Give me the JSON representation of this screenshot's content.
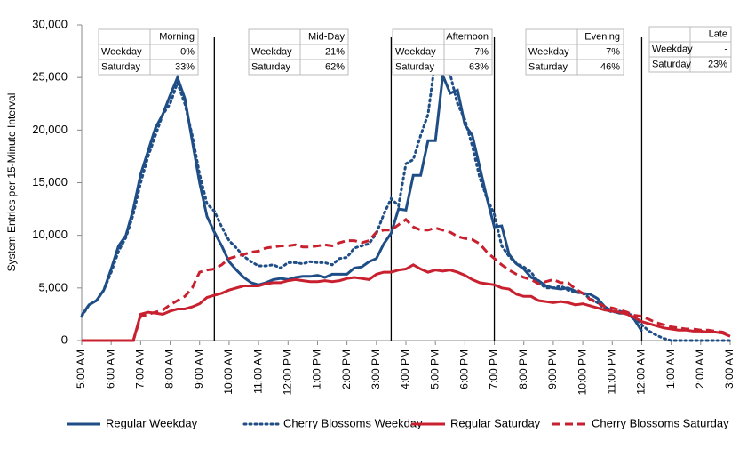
{
  "chart_data": {
    "type": "line",
    "ylabel": "System Entries per 15-Minute Interval",
    "categories": [
      "5:00 AM",
      null,
      null,
      null,
      "6:00 AM",
      null,
      null,
      null,
      "7:00 AM",
      null,
      null,
      null,
      "8:00 AM",
      null,
      null,
      null,
      "9:00 AM",
      null,
      null,
      null,
      "10:00 AM",
      null,
      null,
      null,
      "11:00 AM",
      null,
      null,
      null,
      "12:00 PM",
      null,
      null,
      null,
      "1:00 PM",
      null,
      null,
      null,
      "2:00 PM",
      null,
      null,
      null,
      "3:00 PM",
      null,
      null,
      null,
      "4:00 PM",
      null,
      null,
      null,
      "5:00 PM",
      null,
      null,
      null,
      "6:00 PM",
      null,
      null,
      null,
      "7:00 PM",
      null,
      null,
      null,
      "8:00 PM",
      null,
      null,
      null,
      "9:00 PM",
      null,
      null,
      null,
      "10:00 PM",
      null,
      null,
      null,
      "11:00 PM",
      null,
      null,
      null,
      "12:00 AM",
      null,
      null,
      null,
      "1:00 AM",
      null,
      null,
      null,
      "2:00 AM",
      null,
      null,
      null,
      "3:00 AM"
    ],
    "ylim": [
      0,
      30000
    ],
    "yticks": [
      0,
      {
        "value": 5000,
        "label": "5,000"
      },
      {
        "value": 10000,
        "label": "10,000"
      },
      {
        "value": 15000,
        "label": "15,000"
      },
      {
        "value": 20000,
        "label": "20,000"
      },
      {
        "value": 25000,
        "label": "25,000"
      },
      {
        "value": 30000,
        "label": "30,000"
      }
    ],
    "grid": false,
    "legend": "bottom",
    "series": [
      {
        "name": "Regular Weekday",
        "color": "#1f4e87",
        "dash": "solid",
        "values": [
          2400,
          3400,
          3800,
          4800,
          6800,
          9000,
          10000,
          12500,
          15800,
          18000,
          20200,
          21500,
          23300,
          25000,
          23000,
          19000,
          15000,
          11800,
          10300,
          9000,
          7500,
          6700,
          6000,
          5500,
          5300,
          5500,
          5800,
          5900,
          5800,
          6000,
          6100,
          6100,
          6200,
          6000,
          6300,
          6300,
          6300,
          6900,
          7000,
          7500,
          7800,
          9200,
          10200,
          12500,
          12400,
          15700,
          15700,
          19000,
          19000,
          25200,
          23500,
          23800,
          20500,
          19500,
          16500,
          13500,
          10800,
          10900,
          8200,
          7300,
          6800,
          6000,
          5700,
          5200,
          5000,
          4900,
          5000,
          4700,
          4500,
          4400,
          4000,
          3200,
          2800,
          2600,
          2600,
          2000,
          900,
          null,
          null,
          null,
          null,
          null,
          null,
          null,
          null,
          null,
          null,
          null,
          null
        ]
      },
      {
        "name": "Cherry Blossoms Weekday",
        "color": "#1f4e87",
        "dash": "dot",
        "values": [
          2300,
          3400,
          3800,
          4800,
          6500,
          8500,
          9800,
          12000,
          15000,
          17500,
          19500,
          21500,
          22500,
          24500,
          22500,
          19500,
          15800,
          13000,
          12300,
          10800,
          9500,
          8800,
          8000,
          7500,
          7100,
          7100,
          7200,
          6900,
          7400,
          7400,
          7300,
          7500,
          7400,
          7400,
          7200,
          7800,
          7900,
          8800,
          9000,
          9200,
          10200,
          12000,
          13500,
          12800,
          16800,
          17200,
          19500,
          21500,
          26800,
          25500,
          25300,
          22500,
          21000,
          18500,
          15500,
          13500,
          12000,
          9000,
          8000,
          7300,
          7000,
          6500,
          5500,
          5000,
          5000,
          5200,
          4800,
          4600,
          4500,
          4000,
          3600,
          3000,
          2700,
          2800,
          2600,
          2300,
          1500,
          900,
          500,
          200,
          0,
          0,
          0,
          0,
          0,
          0,
          0,
          0,
          0
        ]
      },
      {
        "name": "Regular Saturday",
        "color": "#c8202f",
        "dash": "solid",
        "values": [
          0,
          0,
          0,
          0,
          0,
          0,
          0,
          0,
          2500,
          2700,
          2600,
          2500,
          2800,
          3000,
          3000,
          3200,
          3500,
          4100,
          4300,
          4500,
          4800,
          5000,
          5200,
          5200,
          5200,
          5400,
          5500,
          5500,
          5700,
          5800,
          5700,
          5600,
          5600,
          5700,
          5600,
          5700,
          5900,
          6000,
          5900,
          5800,
          6300,
          6500,
          6500,
          6700,
          6800,
          7200,
          6800,
          6500,
          6700,
          6600,
          6700,
          6500,
          6200,
          5800,
          5500,
          5400,
          5300,
          5000,
          4900,
          4400,
          4200,
          4200,
          3800,
          3700,
          3600,
          3700,
          3600,
          3400,
          3500,
          3300,
          3100,
          2900,
          2800,
          2700,
          2500,
          2200,
          1800,
          1600,
          1400,
          1200,
          1100,
          1000,
          1000,
          900,
          900,
          800,
          800,
          700,
          400
        ]
      },
      {
        "name": "Cherry Blossoms Saturday",
        "color": "#c8202f",
        "dash": "dash",
        "values": [
          0,
          0,
          0,
          0,
          0,
          0,
          0,
          0,
          2300,
          2500,
          2700,
          2900,
          3400,
          3800,
          4200,
          5000,
          6500,
          6700,
          6800,
          7200,
          7800,
          8000,
          8200,
          8400,
          8500,
          8800,
          8900,
          9000,
          9000,
          9100,
          8900,
          8900,
          9000,
          9100,
          9000,
          9300,
          9500,
          9500,
          9300,
          9500,
          10300,
          10500,
          10500,
          11000,
          11500,
          10800,
          10500,
          10500,
          10700,
          10500,
          10300,
          9900,
          9700,
          9600,
          9200,
          8400,
          7800,
          7200,
          6700,
          6300,
          6000,
          5800,
          5400,
          5600,
          5800,
          5500,
          5500,
          4900,
          4500,
          3900,
          3600,
          3200,
          3100,
          2900,
          2700,
          2400,
          2300,
          2000,
          1700,
          1500,
          1300,
          1200,
          1100,
          1100,
          1000,
          1000,
          900,
          800,
          500
        ]
      }
    ],
    "tables": [
      {
        "title": "Morning",
        "rows": [
          [
            "Weekday",
            "0%"
          ],
          [
            "Saturday",
            "33%"
          ]
        ]
      },
      {
        "title": "Mid-Day",
        "rows": [
          [
            "Weekday",
            "21%"
          ],
          [
            "Saturday",
            "62%"
          ]
        ]
      },
      {
        "title": "Afternoon",
        "rows": [
          [
            "Weekday",
            "7%"
          ],
          [
            "Saturday",
            "63%"
          ]
        ]
      },
      {
        "title": "Evening",
        "rows": [
          [
            "Weekday",
            "7%"
          ],
          [
            "Saturday",
            "46%"
          ]
        ]
      },
      {
        "title": "Late",
        "rows": [
          [
            "Weekday",
            "-"
          ],
          [
            "Saturday",
            "23%"
          ]
        ]
      }
    ]
  }
}
